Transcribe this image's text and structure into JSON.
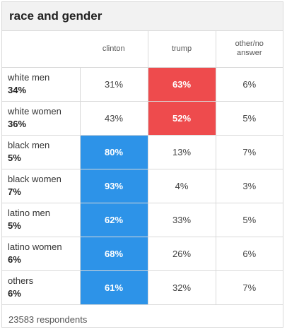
{
  "title": "race and gender",
  "columns": [
    "clinton",
    "trump",
    "other/no\nanswer"
  ],
  "footer": "23583 respondents",
  "colors": {
    "clinton_win": "#2d93e8",
    "trump_win": "#ee4b4d"
  },
  "chart_data": {
    "type": "table",
    "title": "race and gender",
    "columns": [
      "clinton",
      "trump",
      "other/no answer"
    ],
    "rows": [
      {
        "group": "white men",
        "share": "34%",
        "values": [
          31,
          63,
          6
        ],
        "display": [
          "31%",
          "63%",
          "6%"
        ],
        "winner": 1
      },
      {
        "group": "white women",
        "share": "36%",
        "values": [
          43,
          52,
          5
        ],
        "display": [
          "43%",
          "52%",
          "5%"
        ],
        "winner": 1
      },
      {
        "group": "black men",
        "share": "5%",
        "values": [
          80,
          13,
          7
        ],
        "display": [
          "80%",
          "13%",
          "7%"
        ],
        "winner": 0
      },
      {
        "group": "black women",
        "share": "7%",
        "values": [
          93,
          4,
          3
        ],
        "display": [
          "93%",
          "4%",
          "3%"
        ],
        "winner": 0
      },
      {
        "group": "latino men",
        "share": "5%",
        "values": [
          62,
          33,
          5
        ],
        "display": [
          "62%",
          "33%",
          "5%"
        ],
        "winner": 0
      },
      {
        "group": "latino women",
        "share": "6%",
        "values": [
          68,
          26,
          6
        ],
        "display": [
          "68%",
          "26%",
          "6%"
        ],
        "winner": 0
      },
      {
        "group": "others",
        "share": "6%",
        "values": [
          61,
          32,
          7
        ],
        "display": [
          "61%",
          "32%",
          "7%"
        ],
        "winner": 0
      }
    ],
    "footer": "23583 respondents"
  }
}
